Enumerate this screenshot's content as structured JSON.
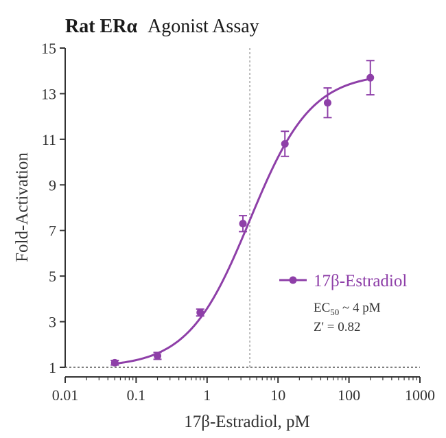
{
  "chart_data": {
    "type": "scatter",
    "title_bold": "Rat ERα",
    "title_rest": "Agonist Assay",
    "xlabel": "17β-Estradiol, pM",
    "ylabel": "Fold-Activation",
    "x_scale": "log",
    "xlim": [
      0.01,
      1000
    ],
    "ylim": [
      1,
      15
    ],
    "x_ticks": [
      0.01,
      0.1,
      1,
      10,
      100,
      1000
    ],
    "x_tick_labels": [
      "0.01",
      "0.1",
      "1",
      "10",
      "100",
      "1000"
    ],
    "y_ticks": [
      1,
      3,
      5,
      7,
      9,
      11,
      13,
      15
    ],
    "y_tick_labels": [
      "1",
      "3",
      "5",
      "7",
      "9",
      "11",
      "13",
      "15"
    ],
    "grid": false,
    "legend_position": "right",
    "color": "#8e3fa8",
    "series": [
      {
        "name": "17β-Estradiol",
        "x": [
          0.05,
          0.2,
          0.8,
          3.2,
          12.5,
          50,
          200
        ],
        "y": [
          1.2,
          1.5,
          3.4,
          7.3,
          10.8,
          12.6,
          13.7
        ],
        "err": [
          0.1,
          0.15,
          0.15,
          0.35,
          0.55,
          0.65,
          0.75
        ]
      }
    ],
    "fit": {
      "model": "4PL",
      "bottom": 1.0,
      "top": 13.9,
      "ec50": 4,
      "hill": 1.0
    },
    "reference_lines": {
      "vertical_x": 4,
      "horizontal_y": 1
    },
    "annotations": {
      "ec50_prefix": "EC",
      "ec50_sub": "50",
      "ec50_rest": " ~ 4 pM",
      "zprime": "Z' = 0.82"
    }
  }
}
